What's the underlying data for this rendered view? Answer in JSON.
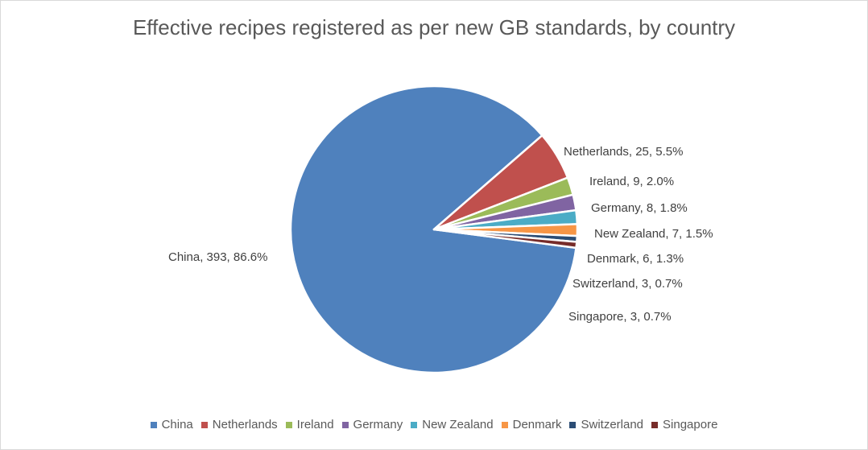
{
  "chart_data": {
    "type": "pie",
    "title": "Effective recipes registered as per new GB standards, by country",
    "categories": [
      "China",
      "Netherlands",
      "Ireland",
      "Germany",
      "New Zealand",
      "Denmark",
      "Switzerland",
      "Singapore"
    ],
    "values": [
      393,
      25,
      9,
      8,
      7,
      6,
      3,
      3
    ],
    "percent_labels": [
      "86.6%",
      "5.5%",
      "2.0%",
      "1.8%",
      "1.5%",
      "1.3%",
      "0.7%",
      "0.7%"
    ],
    "data_labels": [
      "China, 393, 86.6%",
      "Netherlands, 25, 5.5%",
      "Ireland, 9, 2.0%",
      "Germany, 8, 1.8%",
      "New Zealand, 7, 1.5%",
      "Denmark, 6, 1.3%",
      "Switzerland, 3, 0.7%",
      "Singapore, 3, 0.7%"
    ],
    "colors": [
      "#4f81bd",
      "#c0504d",
      "#9bbb59",
      "#8064a2",
      "#4bacc6",
      "#f79646",
      "#2c4d75",
      "#772c2a"
    ],
    "legend_position": "bottom"
  }
}
